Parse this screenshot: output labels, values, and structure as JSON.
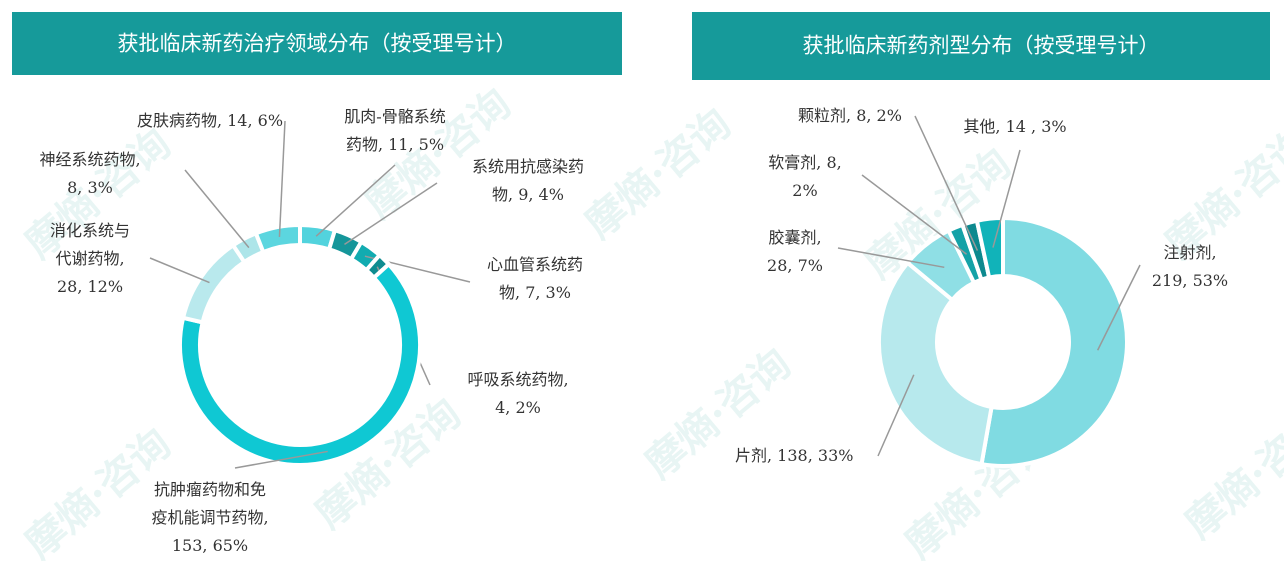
{
  "watermark": "摩熵·咨询",
  "chart_data": [
    {
      "type": "pie",
      "title": "获批临床新药治疗领域分布（按受理号计）",
      "values": [
        11,
        9,
        7,
        4,
        153,
        28,
        8,
        14
      ],
      "value_labels": [
        "肌肉-骨骼系统\n药物, 11, 5%",
        "系统用抗感染药\n物, 9, 4%",
        "心血管系统药\n物, 7, 3%",
        "呼吸系统药物,\n4, 2%",
        "抗肿瘤药物和免\n疫机能调节药物,\n153, 65%",
        "消化系统与\n代谢药物,\n28, 12%",
        "神经系统药物,\n8, 3%",
        "皮肤病药物, 14, 6%"
      ],
      "colors": [
        "#52d3dd",
        "#15969a",
        "#11abb0",
        "#0f8c90",
        "#0fc8d3",
        "#b9e9ed",
        "#ade5e9",
        "#5cd6df"
      ]
    },
    {
      "type": "pie",
      "title": "获批临床新药剂型分布（按受理号计）",
      "values": [
        219,
        138,
        28,
        8,
        8,
        14
      ],
      "value_labels": [
        "注射剂,\n219, 53%",
        "片剂, 138, 33%",
        "胶囊剂,\n28, 7%",
        "软膏剂, 8,\n2%",
        "颗粒剂, 8, 2%",
        "其他, 14 , 3%"
      ],
      "colors": [
        "#80dbe2",
        "#b7e9ed",
        "#8fdfe5",
        "#14a2a7",
        "#0d898e",
        "#11b3b9"
      ]
    }
  ]
}
